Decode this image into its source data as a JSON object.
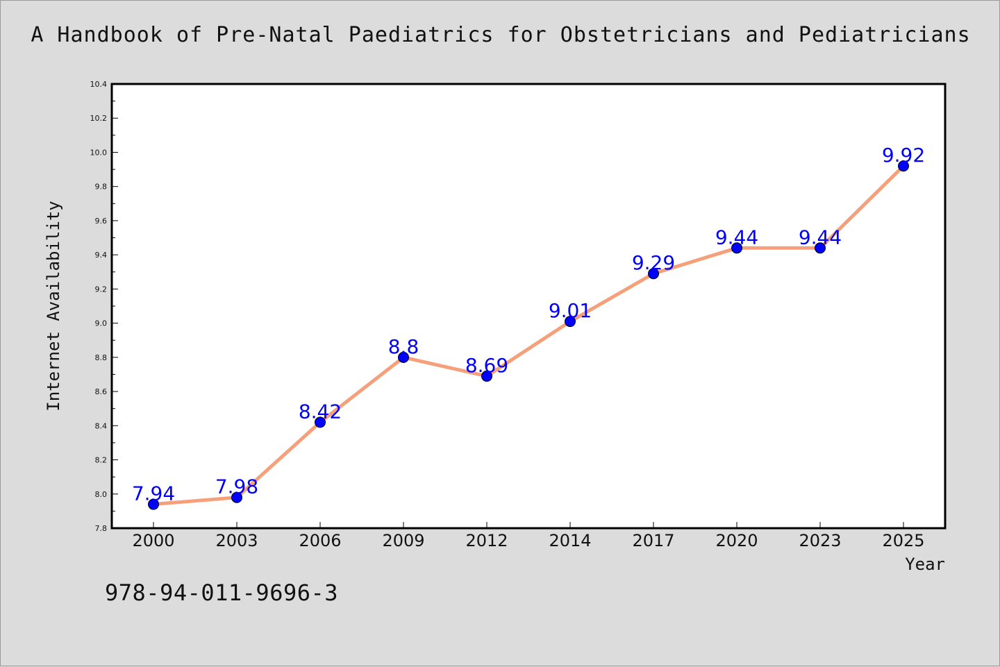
{
  "title": "A Handbook of Pre-Natal Paediatrics for Obstetricians and Pediatricians",
  "footer_code": "978-94-011-9696-3",
  "colors": {
    "line": "#f5a07a",
    "marker": "#0000ff",
    "label": "#0000ff",
    "frame": "#000000",
    "plot_bg": "#ffffff",
    "page_bg": "#dcdcdc"
  },
  "chart_data": {
    "type": "line",
    "title": "A Handbook of Pre-Natal Paediatrics for Obstetricians and Pediatricians",
    "xlabel": "Year",
    "ylabel": "Internet Availability",
    "categories": [
      "2000",
      "2003",
      "2006",
      "2009",
      "2012",
      "2014",
      "2017",
      "2020",
      "2023",
      "2025"
    ],
    "values": [
      7.94,
      7.98,
      8.42,
      8.8,
      8.69,
      9.01,
      9.29,
      9.44,
      9.44,
      9.92
    ],
    "data_labels": [
      "7.94",
      "7.98",
      "8.42",
      "8.8",
      "8.69",
      "9.01",
      "9.29",
      "9.44",
      "9.44",
      "9.92"
    ],
    "ylim": [
      7.8,
      10.4
    ],
    "yticks": [
      "7.8",
      "8.0",
      "8.2",
      "8.4",
      "8.6",
      "8.8",
      "9.0",
      "9.2",
      "9.4",
      "9.6",
      "9.8",
      "10.0",
      "10.2",
      "10.4"
    ],
    "grid": false,
    "legend": "none"
  }
}
